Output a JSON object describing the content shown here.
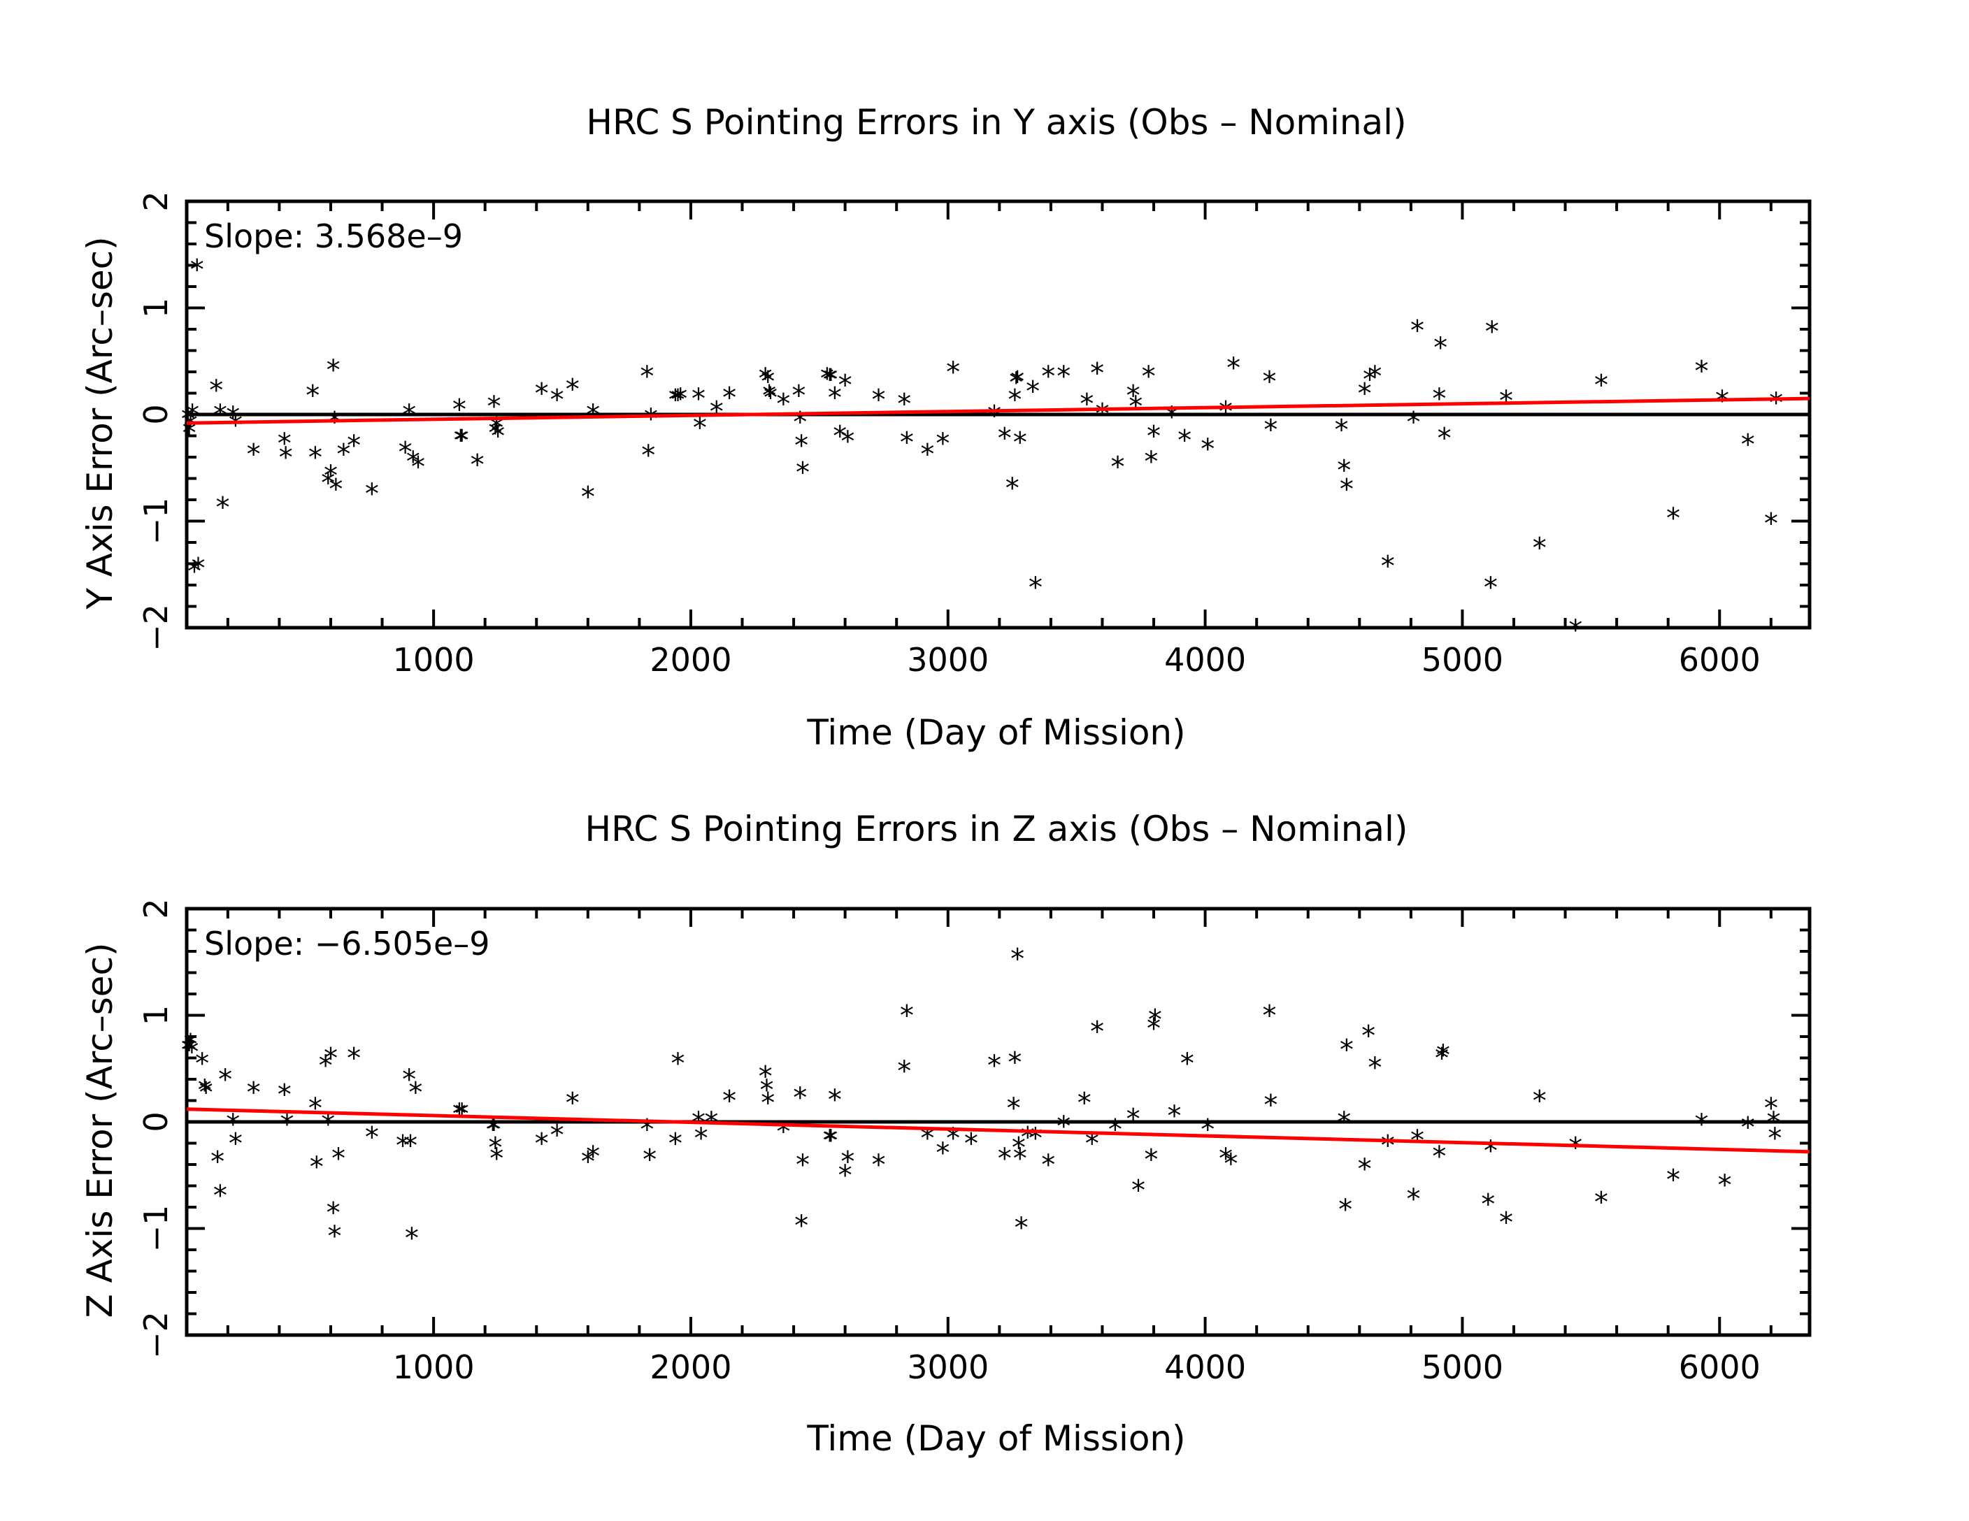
{
  "colors": {
    "trend": "#ff0000",
    "data": "#000000",
    "background": "#ffffff"
  },
  "chart_data": [
    {
      "type": "scatter",
      "title": "HRC S Pointing Errors in Y axis (Obs – Nominal)",
      "xlabel": "Time (Day of Mission)",
      "ylabel": "Y Axis Error (Arc–sec)",
      "annotation": "Slope: 3.568e–9",
      "xlim": [
        40,
        6350
      ],
      "ylim": [
        -2,
        2
      ],
      "xticks": [
        1000,
        2000,
        3000,
        4000,
        5000,
        6000
      ],
      "xtick_labels": [
        "1000",
        "2000",
        "3000",
        "4000",
        "5000",
        "6000"
      ],
      "yticks": [
        -2,
        -1,
        0,
        1,
        2
      ],
      "ytick_labels": [
        "−2",
        "−1",
        "0",
        "1",
        "2"
      ],
      "zero_line": true,
      "marker": "*",
      "trend_line": {
        "x": [
          40,
          6350
        ],
        "y": [
          -0.08,
          0.15
        ]
      },
      "points": [
        [
          45,
          -0.02
        ],
        [
          50,
          -0.15
        ],
        [
          55,
          -0.08
        ],
        [
          62,
          0.02
        ],
        [
          70,
          -1.45
        ],
        [
          80,
          1.38
        ],
        [
          85,
          -1.42
        ],
        [
          155,
          0.25
        ],
        [
          170,
          0.02
        ],
        [
          180,
          -0.85
        ],
        [
          220,
          0.0
        ],
        [
          230,
          -0.08
        ],
        [
          300,
          -0.35
        ],
        [
          420,
          -0.25
        ],
        [
          425,
          -0.38
        ],
        [
          530,
          0.2
        ],
        [
          540,
          -0.38
        ],
        [
          590,
          -0.62
        ],
        [
          600,
          -0.55
        ],
        [
          610,
          0.44
        ],
        [
          615,
          -0.05
        ],
        [
          620,
          -0.68
        ],
        [
          650,
          -0.35
        ],
        [
          690,
          -0.27
        ],
        [
          760,
          -0.72
        ],
        [
          890,
          -0.33
        ],
        [
          905,
          0.02
        ],
        [
          920,
          -0.42
        ],
        [
          940,
          -0.47
        ],
        [
          1100,
          0.07
        ],
        [
          1105,
          -0.22
        ],
        [
          1110,
          -0.22
        ],
        [
          1170,
          -0.45
        ],
        [
          1235,
          0.1
        ],
        [
          1240,
          -0.15
        ],
        [
          1245,
          -0.1
        ],
        [
          1250,
          -0.18
        ],
        [
          1420,
          0.22
        ],
        [
          1480,
          0.16
        ],
        [
          1540,
          0.26
        ],
        [
          1600,
          -0.75
        ],
        [
          1620,
          0.02
        ],
        [
          1830,
          0.38
        ],
        [
          1835,
          -0.36
        ],
        [
          1845,
          -0.02
        ],
        [
          1940,
          0.16
        ],
        [
          1950,
          0.16
        ],
        [
          1960,
          0.17
        ],
        [
          2030,
          0.17
        ],
        [
          2035,
          -0.1
        ],
        [
          2100,
          0.05
        ],
        [
          2150,
          0.18
        ],
        [
          2290,
          0.36
        ],
        [
          2300,
          0.33
        ],
        [
          2305,
          0.2
        ],
        [
          2310,
          0.18
        ],
        [
          2360,
          0.12
        ],
        [
          2420,
          0.2
        ],
        [
          2425,
          -0.05
        ],
        [
          2430,
          -0.27
        ],
        [
          2435,
          -0.52
        ],
        [
          2530,
          0.36
        ],
        [
          2540,
          0.35
        ],
        [
          2545,
          0.35
        ],
        [
          2560,
          0.18
        ],
        [
          2580,
          -0.18
        ],
        [
          2600,
          0.3
        ],
        [
          2610,
          -0.23
        ],
        [
          2730,
          0.16
        ],
        [
          2830,
          0.12
        ],
        [
          2840,
          -0.24
        ],
        [
          2920,
          -0.35
        ],
        [
          2980,
          -0.25
        ],
        [
          3020,
          0.42
        ],
        [
          3180,
          0.01
        ],
        [
          3220,
          -0.2
        ],
        [
          3250,
          -0.67
        ],
        [
          3260,
          0.16
        ],
        [
          3265,
          0.32
        ],
        [
          3270,
          0.33
        ],
        [
          3280,
          -0.24
        ],
        [
          3330,
          0.24
        ],
        [
          3340,
          -1.6
        ],
        [
          3390,
          0.38
        ],
        [
          3450,
          0.38
        ],
        [
          3540,
          0.12
        ],
        [
          3580,
          0.41
        ],
        [
          3600,
          0.03
        ],
        [
          3660,
          -0.47
        ],
        [
          3720,
          0.2
        ],
        [
          3730,
          0.1
        ],
        [
          3780,
          0.38
        ],
        [
          3790,
          -0.42
        ],
        [
          3800,
          -0.18
        ],
        [
          3870,
          0.0
        ],
        [
          3920,
          -0.22
        ],
        [
          4010,
          -0.3
        ],
        [
          4080,
          0.05
        ],
        [
          4110,
          0.46
        ],
        [
          4250,
          0.33
        ],
        [
          4255,
          -0.12
        ],
        [
          4530,
          -0.12
        ],
        [
          4540,
          -0.5
        ],
        [
          4550,
          -0.68
        ],
        [
          4620,
          0.22
        ],
        [
          4640,
          0.35
        ],
        [
          4660,
          0.38
        ],
        [
          4710,
          -1.4
        ],
        [
          4810,
          -0.05
        ],
        [
          4825,
          0.81
        ],
        [
          4910,
          0.17
        ],
        [
          4915,
          0.65
        ],
        [
          4930,
          -0.2
        ],
        [
          5110,
          -1.6
        ],
        [
          5115,
          0.8
        ],
        [
          5170,
          0.15
        ],
        [
          5300,
          -1.23
        ],
        [
          5440,
          -2.0
        ],
        [
          5540,
          0.3
        ],
        [
          5820,
          -0.95
        ],
        [
          5930,
          0.43
        ],
        [
          6010,
          0.15
        ],
        [
          6110,
          -0.26
        ],
        [
          6200,
          -1.0
        ],
        [
          6220,
          0.13
        ]
      ]
    },
    {
      "type": "scatter",
      "title": "HRC S Pointing Errors in  Z axis (Obs – Nominal)",
      "xlabel": "Time (Day of Mission)",
      "ylabel": "Z Axis Error (Arc–sec)",
      "annotation": "Slope: −6.505e–9",
      "xlim": [
        40,
        6350
      ],
      "ylim": [
        -2,
        2
      ],
      "xticks": [
        1000,
        2000,
        3000,
        4000,
        5000,
        6000
      ],
      "xtick_labels": [
        "1000",
        "2000",
        "3000",
        "4000",
        "5000",
        "6000"
      ],
      "yticks": [
        -2,
        -1,
        0,
        1,
        2
      ],
      "ytick_labels": [
        "−2",
        "−1",
        "0",
        "1",
        "2"
      ],
      "zero_line": true,
      "marker": "*",
      "trend_line": {
        "x": [
          40,
          6350
        ],
        "y": [
          0.12,
          -0.28
        ]
      },
      "points": [
        [
          45,
          0.7
        ],
        [
          50,
          0.7
        ],
        [
          55,
          0.75
        ],
        [
          60,
          0.68
        ],
        [
          100,
          0.57
        ],
        [
          110,
          0.32
        ],
        [
          115,
          0.3
        ],
        [
          160,
          -0.35
        ],
        [
          170,
          -0.67
        ],
        [
          190,
          0.42
        ],
        [
          220,
          0.0
        ],
        [
          230,
          -0.18
        ],
        [
          300,
          0.3
        ],
        [
          420,
          0.28
        ],
        [
          430,
          0.0
        ],
        [
          540,
          0.15
        ],
        [
          545,
          -0.4
        ],
        [
          580,
          0.55
        ],
        [
          590,
          0.0
        ],
        [
          600,
          0.62
        ],
        [
          610,
          -0.83
        ],
        [
          615,
          -1.05
        ],
        [
          630,
          -0.32
        ],
        [
          690,
          0.62
        ],
        [
          760,
          -0.12
        ],
        [
          880,
          -0.2
        ],
        [
          905,
          0.42
        ],
        [
          910,
          -0.2
        ],
        [
          915,
          -1.07
        ],
        [
          930,
          0.3
        ],
        [
          1100,
          0.1
        ],
        [
          1110,
          0.1
        ],
        [
          1230,
          -0.05
        ],
        [
          1235,
          -0.05
        ],
        [
          1240,
          -0.22
        ],
        [
          1245,
          -0.32
        ],
        [
          1420,
          -0.18
        ],
        [
          1480,
          -0.1
        ],
        [
          1540,
          0.2
        ],
        [
          1600,
          -0.35
        ],
        [
          1620,
          -0.3
        ],
        [
          1830,
          -0.05
        ],
        [
          1840,
          -0.33
        ],
        [
          1940,
          -0.18
        ],
        [
          1950,
          0.57
        ],
        [
          2030,
          0.02
        ],
        [
          2040,
          -0.13
        ],
        [
          2080,
          0.02
        ],
        [
          2150,
          0.22
        ],
        [
          2290,
          0.45
        ],
        [
          2295,
          0.32
        ],
        [
          2300,
          0.2
        ],
        [
          2360,
          -0.07
        ],
        [
          2425,
          0.25
        ],
        [
          2430,
          -0.95
        ],
        [
          2435,
          -0.38
        ],
        [
          2540,
          -0.15
        ],
        [
          2545,
          -0.15
        ],
        [
          2560,
          0.23
        ],
        [
          2600,
          -0.48
        ],
        [
          2610,
          -0.35
        ],
        [
          2730,
          -0.38
        ],
        [
          2830,
          0.5
        ],
        [
          2840,
          1.02
        ],
        [
          2920,
          -0.13
        ],
        [
          2980,
          -0.27
        ],
        [
          3020,
          -0.13
        ],
        [
          3090,
          -0.18
        ],
        [
          3180,
          0.55
        ],
        [
          3220,
          -0.32
        ],
        [
          3255,
          0.15
        ],
        [
          3260,
          0.58
        ],
        [
          3270,
          1.55
        ],
        [
          3275,
          -0.22
        ],
        [
          3280,
          -0.32
        ],
        [
          3285,
          -0.97
        ],
        [
          3310,
          -0.12
        ],
        [
          3340,
          -0.13
        ],
        [
          3390,
          -0.38
        ],
        [
          3450,
          -0.02
        ],
        [
          3530,
          0.2
        ],
        [
          3560,
          -0.18
        ],
        [
          3580,
          0.87
        ],
        [
          3650,
          -0.05
        ],
        [
          3720,
          0.05
        ],
        [
          3740,
          -0.62
        ],
        [
          3790,
          -0.33
        ],
        [
          3800,
          0.9
        ],
        [
          3805,
          0.98
        ],
        [
          3880,
          0.08
        ],
        [
          3930,
          0.57
        ],
        [
          4010,
          -0.05
        ],
        [
          4080,
          -0.32
        ],
        [
          4100,
          -0.37
        ],
        [
          4250,
          1.02
        ],
        [
          4255,
          0.18
        ],
        [
          4540,
          0.02
        ],
        [
          4545,
          -0.8
        ],
        [
          4550,
          0.7
        ],
        [
          4620,
          -0.42
        ],
        [
          4635,
          0.83
        ],
        [
          4660,
          0.53
        ],
        [
          4710,
          -0.2
        ],
        [
          4810,
          -0.7
        ],
        [
          4825,
          -0.15
        ],
        [
          4910,
          -0.3
        ],
        [
          4920,
          0.62
        ],
        [
          4925,
          0.65
        ],
        [
          5100,
          -0.75
        ],
        [
          5110,
          -0.25
        ],
        [
          5170,
          -0.92
        ],
        [
          5300,
          0.22
        ],
        [
          5440,
          -0.22
        ],
        [
          5540,
          -0.73
        ],
        [
          5820,
          -0.52
        ],
        [
          5930,
          0.0
        ],
        [
          6020,
          -0.57
        ],
        [
          6110,
          -0.03
        ],
        [
          6200,
          0.15
        ],
        [
          6210,
          0.02
        ],
        [
          6215,
          -0.13
        ]
      ]
    }
  ]
}
